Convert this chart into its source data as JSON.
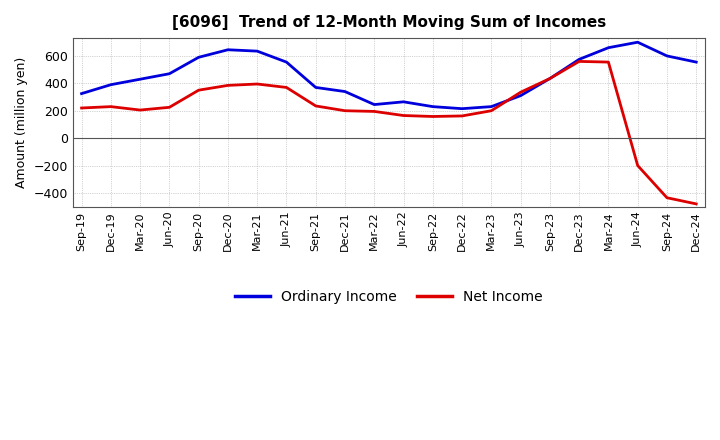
{
  "title": "[6096]  Trend of 12-Month Moving Sum of Incomes",
  "ylabel": "Amount (million yen)",
  "ylim": [
    -500,
    730
  ],
  "yticks": [
    -400,
    -200,
    0,
    200,
    400,
    600
  ],
  "background_color": "#ffffff",
  "grid_color": "#aaaaaa",
  "ordinary_income_color": "#0000dd",
  "net_income_color": "#dd0000",
  "labels": [
    "Ordinary Income",
    "Net Income"
  ],
  "x_labels": [
    "Sep-19",
    "Dec-19",
    "Mar-20",
    "Jun-20",
    "Sep-20",
    "Dec-20",
    "Mar-21",
    "Jun-21",
    "Sep-21",
    "Dec-21",
    "Mar-22",
    "Jun-22",
    "Sep-22",
    "Dec-22",
    "Mar-23",
    "Jun-23",
    "Sep-23",
    "Dec-23",
    "Mar-24",
    "Jun-24",
    "Sep-24",
    "Dec-24"
  ],
  "ordinary_income": [
    325,
    390,
    430,
    470,
    590,
    645,
    635,
    555,
    370,
    340,
    245,
    265,
    230,
    215,
    230,
    310,
    435,
    575,
    660,
    700,
    600,
    555
  ],
  "net_income": [
    220,
    230,
    205,
    225,
    350,
    385,
    395,
    370,
    235,
    200,
    195,
    165,
    158,
    162,
    200,
    335,
    435,
    560,
    555,
    -200,
    -435,
    -480
  ],
  "linewidth": 2.0
}
